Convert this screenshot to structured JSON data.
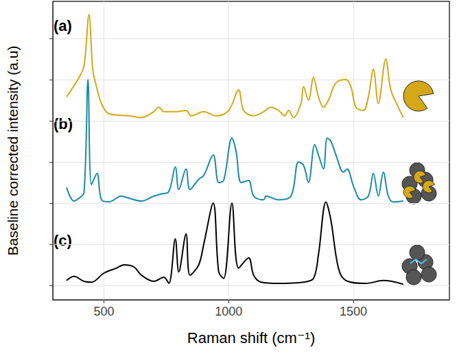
{
  "chart_data": {
    "type": "line",
    "x_label": "Raman shift (cm⁻¹)",
    "y_label": "Baseline corrected intensity (a.u)",
    "xlim": [
      295,
      1885
    ],
    "xticks": [
      500,
      1000,
      1500
    ],
    "ylim": [
      -0.35,
      6.9
    ],
    "yticks": [
      0,
      1,
      2,
      3,
      4,
      5,
      6
    ],
    "grid": true,
    "tick_labels": "x",
    "series": [
      {
        "name": "(a)",
        "color": "#D4A817",
        "x": [
          350,
          400,
          420,
          440,
          455,
          470,
          490,
          520,
          600,
          650,
          700,
          720,
          740,
          790,
          830,
          850,
          900,
          950,
          1000,
          1040,
          1060,
          1100,
          1140,
          1170,
          1200,
          1225,
          1240,
          1260,
          1290,
          1300,
          1320,
          1340,
          1360,
          1380,
          1400,
          1430,
          1470,
          1490,
          1510,
          1540,
          1560,
          1580,
          1600,
          1630,
          1650,
          1680,
          1700
        ],
        "values": [
          4.58,
          5.05,
          5.33,
          6.58,
          5.25,
          4.83,
          4.42,
          4.17,
          4.12,
          4.08,
          4.22,
          4.33,
          4.22,
          4.22,
          4.25,
          4.12,
          4.22,
          4.12,
          4.25,
          4.75,
          4.25,
          4.12,
          4.22,
          4.33,
          4.25,
          4.12,
          4.25,
          4.08,
          4.42,
          4.83,
          4.5,
          5.05,
          4.58,
          4.33,
          4.5,
          4.92,
          5.0,
          4.83,
          4.33,
          4.25,
          4.58,
          5.25,
          4.42,
          5.5,
          4.75,
          4.33,
          4.08
        ]
      },
      {
        "name": "(b)",
        "color": "#1A8AA8",
        "x": [
          350,
          380,
          400,
          420,
          436,
          450,
          472,
          490,
          520,
          570,
          600,
          650,
          700,
          730,
          760,
          786,
          800,
          829,
          845,
          880,
          900,
          938,
          960,
          980,
          1013,
          1030,
          1050,
          1080,
          1100,
          1140,
          1150,
          1200,
          1250,
          1280,
          1300,
          1320,
          1345,
          1360,
          1380,
          1395,
          1410,
          1430,
          1460,
          1475,
          1500,
          1530,
          1560,
          1580,
          1600,
          1620,
          1640,
          1660,
          1700
        ],
        "values": [
          2.38,
          2.05,
          2.12,
          2.25,
          5.0,
          2.45,
          2.72,
          2.08,
          2.03,
          2.17,
          2.12,
          2.05,
          2.17,
          2.22,
          2.28,
          2.88,
          2.33,
          2.83,
          2.33,
          2.58,
          2.67,
          3.17,
          2.5,
          2.55,
          3.58,
          3.25,
          2.5,
          2.55,
          2.17,
          2.08,
          2.17,
          2.08,
          2.17,
          3.0,
          2.92,
          2.5,
          3.42,
          3.17,
          2.83,
          3.58,
          3.5,
          3.17,
          2.75,
          2.83,
          2.42,
          2.08,
          2.17,
          2.72,
          2.17,
          2.75,
          2.17,
          2.03,
          2.05
        ]
      },
      {
        "name": "(c)",
        "color": "#000000",
        "x": [
          350,
          380,
          420,
          450,
          500,
          550,
          580,
          620,
          650,
          700,
          740,
          760,
          786,
          800,
          829,
          845,
          880,
          900,
          938,
          960,
          980,
          1013,
          1040,
          1080,
          1100,
          1130,
          1200,
          1300,
          1340,
          1360,
          1390,
          1410,
          1440,
          1470,
          1550,
          1620,
          1700
        ],
        "values": [
          0.12,
          0.22,
          0.1,
          0.08,
          0.3,
          0.42,
          0.5,
          0.45,
          0.25,
          0.1,
          0.2,
          0.05,
          1.13,
          0.33,
          1.25,
          0.25,
          0.5,
          1.0,
          2.0,
          0.33,
          0.17,
          2.0,
          0.42,
          0.67,
          0.25,
          0.08,
          0.05,
          0.08,
          0.17,
          0.75,
          2.03,
          1.58,
          0.42,
          0.12,
          0.05,
          0.12,
          0.03
        ]
      }
    ]
  }
}
